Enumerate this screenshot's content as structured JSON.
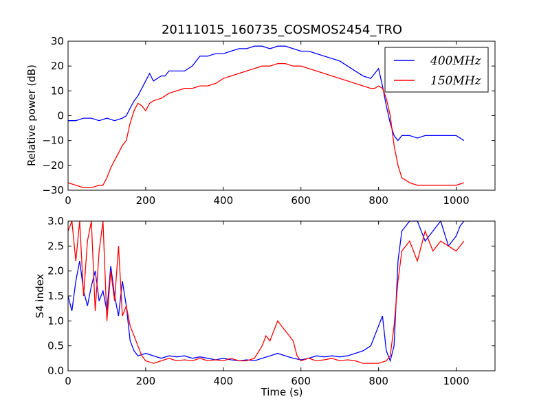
{
  "chart_data": [
    {
      "type": "line",
      "title": "20111015_160735_COSMOS2454_TRO",
      "xlabel": "",
      "ylabel": "Relative power (dB)",
      "xlim": [
        0,
        1100
      ],
      "ylim": [
        -30,
        30
      ],
      "xticks": [
        "0",
        "200",
        "400",
        "600",
        "800",
        "1000"
      ],
      "yticks": [
        "−30",
        "−20",
        "−10",
        "0",
        "10",
        "20",
        "30"
      ],
      "grid": false,
      "legend": "top-right",
      "series": [
        {
          "name": "400MHz",
          "color": "#0000ff",
          "x": [
            0,
            20,
            40,
            60,
            80,
            100,
            120,
            140,
            150,
            160,
            170,
            180,
            190,
            200,
            210,
            220,
            230,
            240,
            250,
            260,
            280,
            300,
            320,
            340,
            360,
            380,
            400,
            420,
            440,
            460,
            480,
            500,
            520,
            540,
            560,
            580,
            600,
            620,
            640,
            660,
            680,
            700,
            720,
            740,
            760,
            780,
            790,
            800,
            810,
            820,
            830,
            840,
            850,
            860,
            880,
            900,
            920,
            940,
            960,
            980,
            1000,
            1010,
            1020
          ],
          "y": [
            -2,
            -2,
            -1,
            -1,
            -2,
            -1,
            -2,
            -1,
            0,
            3,
            6,
            8,
            11,
            14,
            17,
            14,
            15,
            16,
            16,
            18,
            18,
            18,
            20,
            24,
            24,
            25,
            25,
            26,
            27,
            27,
            28,
            28,
            27,
            28,
            28,
            27,
            26,
            26,
            25,
            24,
            23,
            22,
            20,
            18,
            16,
            15,
            17,
            19,
            12,
            4,
            -3,
            -8,
            -10,
            -8,
            -8,
            -9,
            -8,
            -8,
            -8,
            -8,
            -8,
            -9,
            -10
          ]
        },
        {
          "name": "150MHz",
          "color": "#ff0000",
          "x": [
            0,
            20,
            40,
            60,
            80,
            90,
            100,
            110,
            120,
            130,
            140,
            150,
            160,
            170,
            180,
            190,
            200,
            210,
            220,
            240,
            260,
            280,
            300,
            320,
            340,
            360,
            380,
            400,
            420,
            440,
            460,
            480,
            500,
            520,
            540,
            560,
            580,
            600,
            620,
            640,
            660,
            680,
            700,
            720,
            740,
            760,
            780,
            790,
            800,
            810,
            820,
            830,
            840,
            850,
            860,
            880,
            900,
            920,
            940,
            960,
            980,
            1000,
            1020
          ],
          "y": [
            -27,
            -28,
            -29,
            -29,
            -28,
            -28,
            -25,
            -21,
            -18,
            -15,
            -12,
            -10,
            -3,
            2,
            5,
            4,
            2,
            5,
            6,
            7,
            9,
            10,
            11,
            11,
            12,
            12,
            13,
            15,
            16,
            17,
            18,
            19,
            20,
            20,
            21,
            21,
            20,
            20,
            19,
            18,
            17,
            16,
            15,
            14,
            13,
            12,
            11,
            11,
            12,
            11,
            7,
            0,
            -12,
            -20,
            -25,
            -27,
            -28,
            -28,
            -28,
            -28,
            -28,
            -28,
            -27
          ]
        }
      ]
    },
    {
      "type": "line",
      "title": "",
      "xlabel": "Time (s)",
      "ylabel": "S4 index",
      "xlim": [
        0,
        1100
      ],
      "ylim": [
        0.0,
        3.0
      ],
      "xticks": [
        "0",
        "200",
        "400",
        "600",
        "800",
        "1000"
      ],
      "yticks": [
        "0.0",
        "0.5",
        "1.0",
        "1.5",
        "2.0",
        "2.5",
        "3.0"
      ],
      "grid": false,
      "legend": "",
      "series": [
        {
          "name": "400MHz",
          "color": "#0000ff",
          "x": [
            0,
            10,
            20,
            30,
            40,
            50,
            60,
            70,
            80,
            90,
            100,
            110,
            120,
            130,
            140,
            150,
            160,
            170,
            180,
            200,
            220,
            240,
            260,
            280,
            300,
            320,
            340,
            360,
            380,
            400,
            420,
            440,
            460,
            480,
            500,
            520,
            540,
            560,
            580,
            600,
            620,
            640,
            660,
            680,
            700,
            720,
            740,
            760,
            780,
            790,
            800,
            810,
            820,
            830,
            840,
            850,
            860,
            880,
            900,
            920,
            940,
            960,
            980,
            1000,
            1010,
            1020
          ],
          "y": [
            1.5,
            1.2,
            1.8,
            2.2,
            1.6,
            1.3,
            1.7,
            2.0,
            1.4,
            1.6,
            1.2,
            2.1,
            1.5,
            1.1,
            1.8,
            1.3,
            0.6,
            0.4,
            0.3,
            0.35,
            0.3,
            0.25,
            0.3,
            0.28,
            0.3,
            0.25,
            0.28,
            0.25,
            0.22,
            0.25,
            0.22,
            0.2,
            0.22,
            0.2,
            0.25,
            0.3,
            0.35,
            0.3,
            0.25,
            0.22,
            0.25,
            0.3,
            0.28,
            0.3,
            0.28,
            0.3,
            0.35,
            0.4,
            0.5,
            0.7,
            0.9,
            1.1,
            0.4,
            0.2,
            0.5,
            2.2,
            2.8,
            3.0,
            3.0,
            2.6,
            2.8,
            3.0,
            2.5,
            2.7,
            2.9,
            3.0
          ]
        },
        {
          "name": "150MHz",
          "color": "#ff0000",
          "x": [
            0,
            10,
            20,
            30,
            40,
            50,
            60,
            70,
            80,
            90,
            100,
            110,
            120,
            130,
            140,
            150,
            160,
            170,
            180,
            190,
            200,
            220,
            240,
            260,
            280,
            300,
            320,
            340,
            360,
            380,
            400,
            420,
            440,
            460,
            480,
            500,
            510,
            520,
            530,
            540,
            550,
            560,
            570,
            580,
            590,
            600,
            620,
            640,
            660,
            680,
            700,
            720,
            740,
            760,
            780,
            800,
            820,
            830,
            840,
            850,
            860,
            880,
            900,
            920,
            940,
            960,
            980,
            1000,
            1020
          ],
          "y": [
            2.8,
            3.0,
            2.2,
            3.0,
            1.5,
            2.6,
            3.0,
            1.2,
            2.4,
            3.0,
            1.0,
            2.0,
            1.4,
            2.5,
            1.1,
            1.3,
            0.9,
            0.7,
            0.5,
            0.3,
            0.2,
            0.15,
            0.2,
            0.25,
            0.2,
            0.22,
            0.2,
            0.25,
            0.2,
            0.22,
            0.2,
            0.25,
            0.2,
            0.2,
            0.25,
            0.5,
            0.7,
            0.6,
            0.8,
            1.0,
            0.9,
            0.8,
            0.7,
            0.6,
            0.3,
            0.2,
            0.25,
            0.2,
            0.22,
            0.25,
            0.2,
            0.22,
            0.2,
            0.15,
            0.15,
            0.15,
            0.2,
            0.3,
            0.9,
            1.8,
            2.4,
            2.6,
            2.2,
            2.8,
            2.4,
            2.6,
            2.5,
            2.4,
            2.6
          ]
        }
      ]
    }
  ]
}
